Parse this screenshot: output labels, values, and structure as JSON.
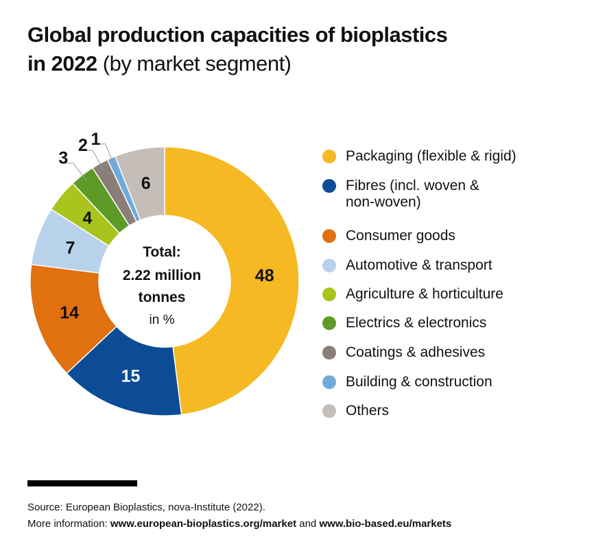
{
  "title": {
    "bold_line1": "Global production capacities of bioplastics",
    "bold_line2": "in 2022",
    "regular": "(by market segment)"
  },
  "chart_data": {
    "type": "pie",
    "donut": true,
    "unit": "%",
    "center_text": {
      "line1": "Total:",
      "line2": "2.22 million",
      "line3": "tonnes",
      "line4": "in %"
    },
    "categories": [
      "Packaging (flexible & rigid)",
      "Fibres (incl. woven & non-woven)",
      "Consumer goods",
      "Automotive & transport",
      "Agriculture & horticulture",
      "Electrics & electronics",
      "Coatings & adhesives",
      "Building & construction",
      "Others"
    ],
    "legend_lines": [
      [
        "Packaging (flexible & rigid)"
      ],
      [
        "Fibres (incl. woven &",
        "non-woven)"
      ],
      [
        "Consumer goods"
      ],
      [
        "Automotive & transport"
      ],
      [
        "Agriculture & horticulture"
      ],
      [
        "Electrics & electronics"
      ],
      [
        "Coatings & adhesives"
      ],
      [
        "Building & construction"
      ],
      [
        "Others"
      ]
    ],
    "values": [
      48,
      15,
      14,
      7,
      4,
      3,
      2,
      1,
      6
    ],
    "colors": [
      "#f6b823",
      "#0c4b95",
      "#e1700f",
      "#b8d2eb",
      "#a9c41c",
      "#5e9b26",
      "#8b7e79",
      "#70aad9",
      "#c5bdb7"
    ],
    "label_colors": [
      "#111",
      "#fff",
      "#111",
      "#111",
      "#111",
      "#111",
      "#111",
      "#111",
      "#111"
    ],
    "legend_placement": "right"
  },
  "footer": {
    "source": "Source: European Bioplastics, nova-Institute (2022).",
    "more_prefix": "More information: ",
    "link1": "www.european-bioplastics.org/market",
    "and": " and ",
    "link2": "www.bio-based.eu/markets"
  }
}
